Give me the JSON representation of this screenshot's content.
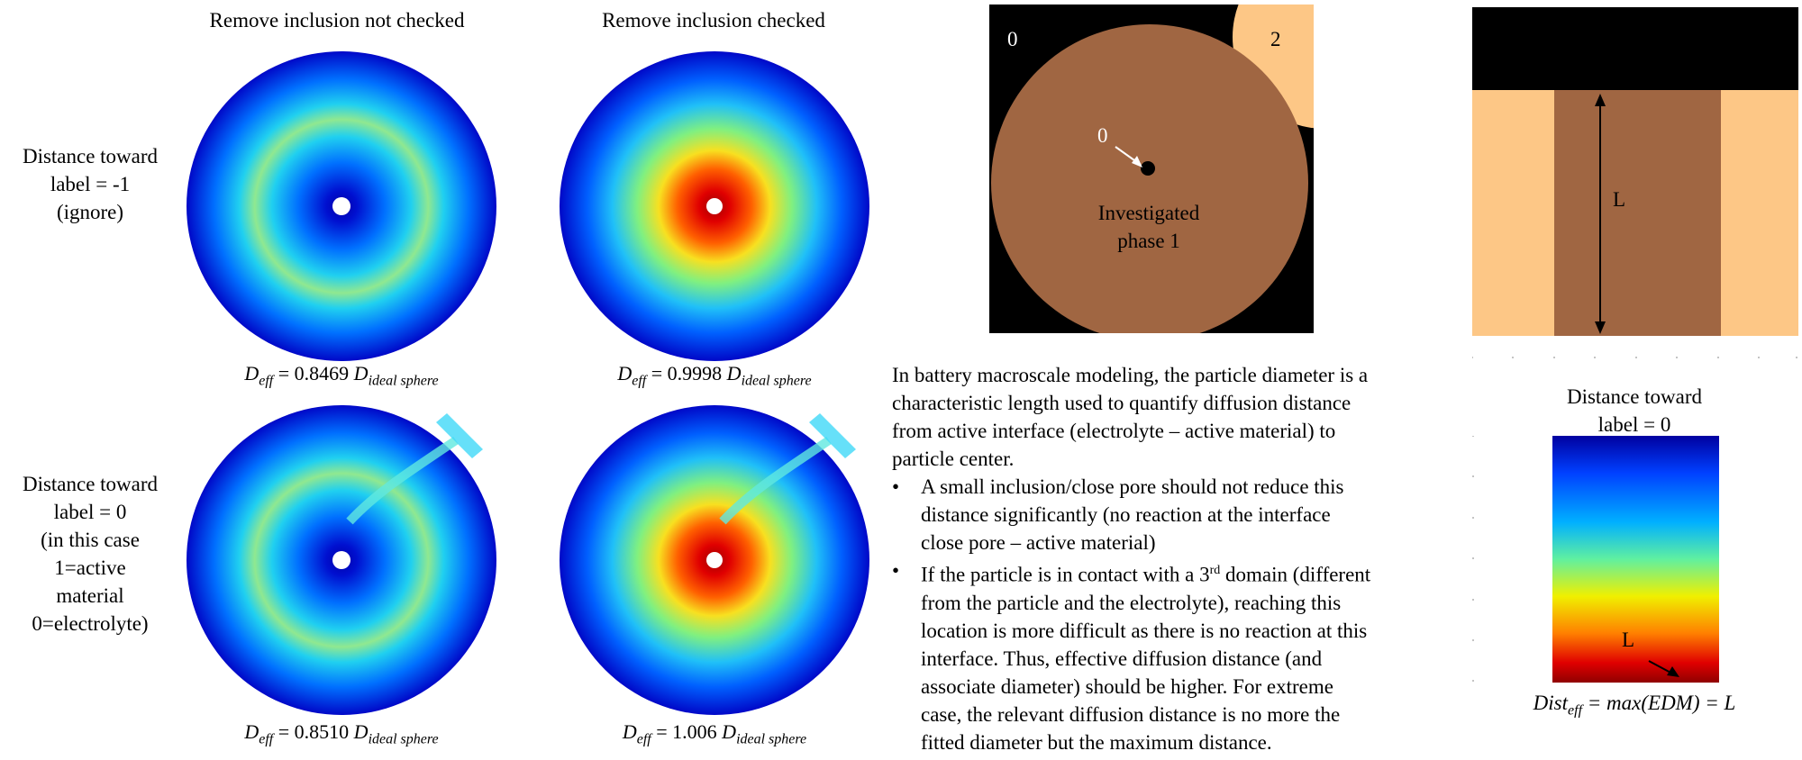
{
  "columns": {
    "left_title": "Remove inclusion not checked",
    "right_title": "Remove inclusion checked"
  },
  "rows": {
    "row1_label": [
      "Distance toward",
      "label = -1",
      "(ignore)"
    ],
    "row2_label": [
      "Distance toward",
      "label = 0",
      "(in this case",
      "1=active",
      "material",
      "0=electrolyte)"
    ]
  },
  "equations": {
    "prefix": "D",
    "prefix_sub": "eff",
    "suffix": "D",
    "suffix_sub": "ideal sphere",
    "r1c1": "= 0.8469",
    "r1c2": "= 0.9998",
    "r2c1": "= 0.8510",
    "r2c2": "= 1.006"
  },
  "phase_image": {
    "label_top_left": "0",
    "label_top_right": "2",
    "label_arrow": "0",
    "caption_line1": "Investigated",
    "caption_line2": "phase 1",
    "colors": {
      "background": "#000000",
      "phase1": "#A06642",
      "phase2": "#FDC786"
    }
  },
  "description": {
    "paragraph": [
      "In battery macroscale modeling, the particle diameter is a",
      "characteristic length used to quantify diffusion distance",
      "from active interface (electrolyte – active material) to",
      "particle center."
    ],
    "bullet_symbol": "•",
    "bullet1": [
      "A small inclusion/close pore should not reduce this",
      "distance significantly (no reaction at the interface",
      "close pore – active material)"
    ],
    "bullet2_lead": "If the particle is in contact with a 3",
    "bullet2_sup": "rd",
    "bullet2_tail": " domain (different",
    "bullet2": [
      "from the particle and the electrolyte), reaching this",
      "location is more difficult as there is no reaction at this",
      "interface. Thus, effective diffusion distance (and",
      "associate diameter) should be higher. For extreme",
      "case, the relevant diffusion distance is no more the",
      "fitted diameter but the maximum distance."
    ]
  },
  "slab": {
    "length_label": "L"
  },
  "edm": {
    "title": [
      "Distance toward",
      "label = 0"
    ],
    "length_label": "L",
    "formula_lhs": "Dist",
    "formula_sub": "eff",
    "formula_rhs": " = max(EDM) = L"
  }
}
